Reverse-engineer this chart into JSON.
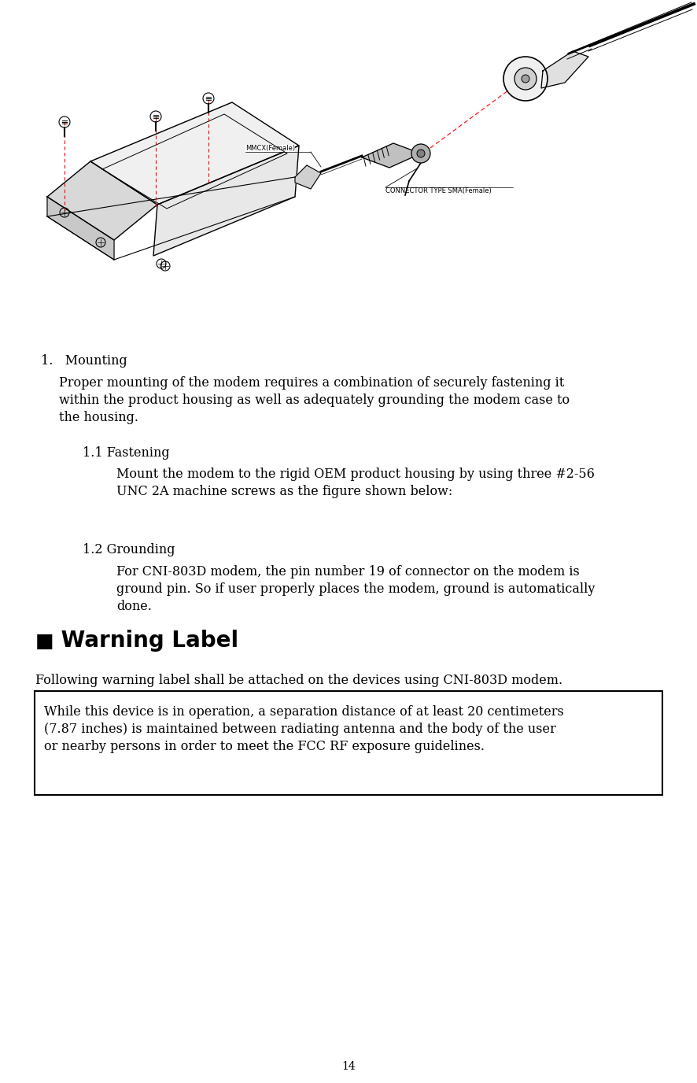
{
  "bg_color": "#ffffff",
  "page_width": 8.86,
  "page_height": 13.76,
  "dpi": 100,
  "section_line": "1.   Mounting",
  "para1_lines": [
    "Proper mounting of the modem requires a combination of securely fastening it",
    "within the product housing as well as adequately grounding the modem case to",
    "the housing."
  ],
  "sub1_title": "1.1 Fastening",
  "sub1_body_lines": [
    "Mount the modem to the rigid OEM product housing by using three #2-56",
    "UNC 2A machine screws as the figure shown below:"
  ],
  "sub2_title": "1.2 Grounding",
  "sub2_body_lines": [
    "For CNI-803D modem, the pin number 19 of connector on the modem is",
    "ground pin. So if user properly places the modem, ground is automatically",
    "done."
  ],
  "warning_bullet": "■",
  "warning_title": " Warning Label",
  "warning_intro": "Following warning label shall be attached on the devices using CNI-803D modem.",
  "warning_box_lines": [
    "While this device is in operation, a separation distance of at least 20 centimeters",
    "(7.87 inches) is maintained between radiating antenna and the body of the user",
    "or nearby persons in order to meet the FCC RF exposure guidelines."
  ],
  "page_number": "14",
  "text_color": "#000000",
  "lm": 50,
  "rm": 50
}
